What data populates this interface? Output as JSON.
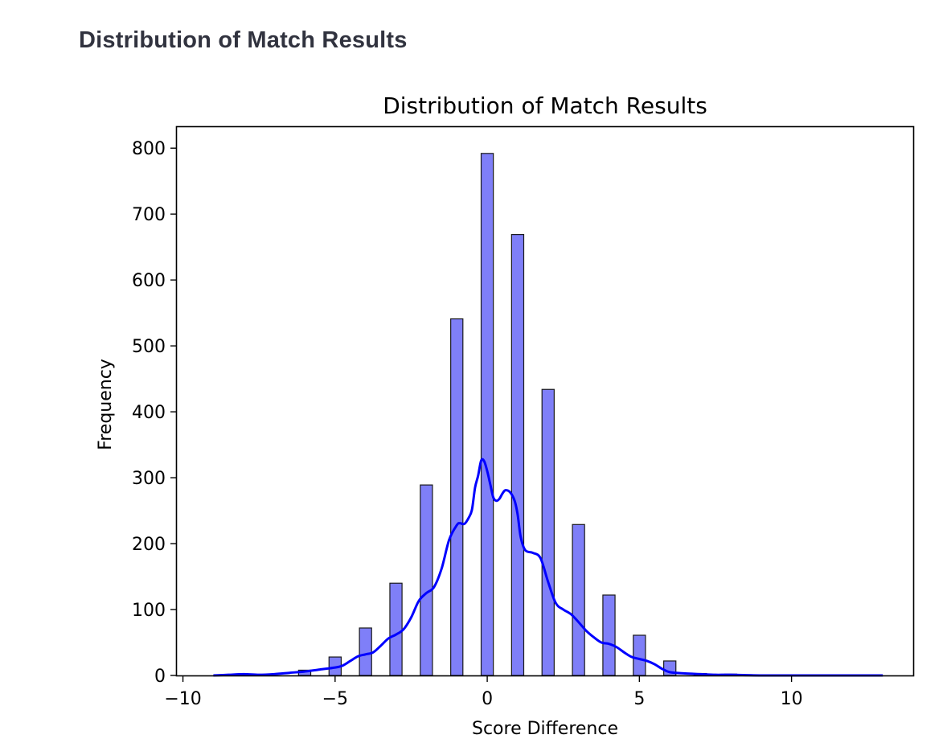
{
  "page": {
    "heading": "Distribution of Match Results"
  },
  "chart_data": {
    "type": "bar",
    "title": "Distribution of Match Results",
    "xlabel": "Score Difference",
    "ylabel": "Frequency",
    "xlim": [
      -10.2,
      14.0
    ],
    "ylim": [
      0,
      832
    ],
    "xticks": [
      {
        "value": -10,
        "label": "−10"
      },
      {
        "value": -5,
        "label": "−5"
      },
      {
        "value": 0,
        "label": "0"
      },
      {
        "value": 5,
        "label": "5"
      },
      {
        "value": 10,
        "label": "10"
      }
    ],
    "yticks": [
      {
        "value": 0,
        "label": "0"
      },
      {
        "value": 100,
        "label": "100"
      },
      {
        "value": 200,
        "label": "200"
      },
      {
        "value": 300,
        "label": "300"
      },
      {
        "value": 400,
        "label": "400"
      },
      {
        "value": 500,
        "label": "500"
      },
      {
        "value": 600,
        "label": "600"
      },
      {
        "value": 700,
        "label": "700"
      },
      {
        "value": 800,
        "label": "800"
      }
    ],
    "bin_width": 0.4,
    "bins": [
      {
        "x": -8,
        "count": 2
      },
      {
        "x": -6,
        "count": 8
      },
      {
        "x": -5,
        "count": 28
      },
      {
        "x": -4,
        "count": 72
      },
      {
        "x": -3,
        "count": 140
      },
      {
        "x": -2,
        "count": 289
      },
      {
        "x": -1,
        "count": 541
      },
      {
        "x": 0,
        "count": 792
      },
      {
        "x": 1,
        "count": 669
      },
      {
        "x": 2,
        "count": 434
      },
      {
        "x": 3,
        "count": 229
      },
      {
        "x": 4,
        "count": 122
      },
      {
        "x": 5,
        "count": 61
      },
      {
        "x": 6,
        "count": 22
      },
      {
        "x": 7,
        "count": 3
      },
      {
        "x": 8,
        "count": 2
      }
    ],
    "kde": {
      "x": [
        -9,
        -8.5,
        -8,
        -7.5,
        -7,
        -6.5,
        -6,
        -5.5,
        -5,
        -4.75,
        -4.5,
        -4.25,
        -4,
        -3.75,
        -3.5,
        -3.25,
        -3,
        -2.75,
        -2.5,
        -2.25,
        -2,
        -1.75,
        -1.5,
        -1.25,
        -1,
        -0.9,
        -0.75,
        -0.6,
        -0.5,
        -0.4,
        -0.3,
        -0.2,
        -0.1,
        0,
        0.1,
        0.2,
        0.3,
        0.4,
        0.5,
        0.6,
        0.75,
        0.9,
        1,
        1.1,
        1.25,
        1.5,
        1.75,
        2,
        2.25,
        2.5,
        2.75,
        3,
        3.25,
        3.5,
        3.75,
        4,
        4.25,
        4.5,
        4.75,
        5,
        5.25,
        5.5,
        5.75,
        6,
        6.5,
        7,
        7.5,
        8,
        9,
        10,
        11,
        12,
        13
      ],
      "y": [
        0,
        1,
        2,
        1,
        2,
        4,
        6,
        9,
        12,
        15,
        22,
        29,
        32,
        35,
        45,
        56,
        62,
        70,
        88,
        113,
        125,
        134,
        162,
        206,
        228,
        231,
        230,
        240,
        252,
        285,
        303,
        326,
        325,
        310,
        290,
        270,
        265,
        268,
        276,
        281,
        278,
        265,
        244,
        210,
        190,
        186,
        178,
        142,
        110,
        100,
        93,
        81,
        68,
        58,
        50,
        48,
        43,
        35,
        28,
        25,
        22,
        17,
        10,
        5,
        3,
        2,
        1,
        1,
        0,
        0,
        0,
        0,
        0
      ],
      "color": "#0000ff"
    },
    "bar_fill": "#7f7ff8",
    "bar_stroke": "#1a1a1a",
    "grid": false,
    "legend": "none"
  }
}
